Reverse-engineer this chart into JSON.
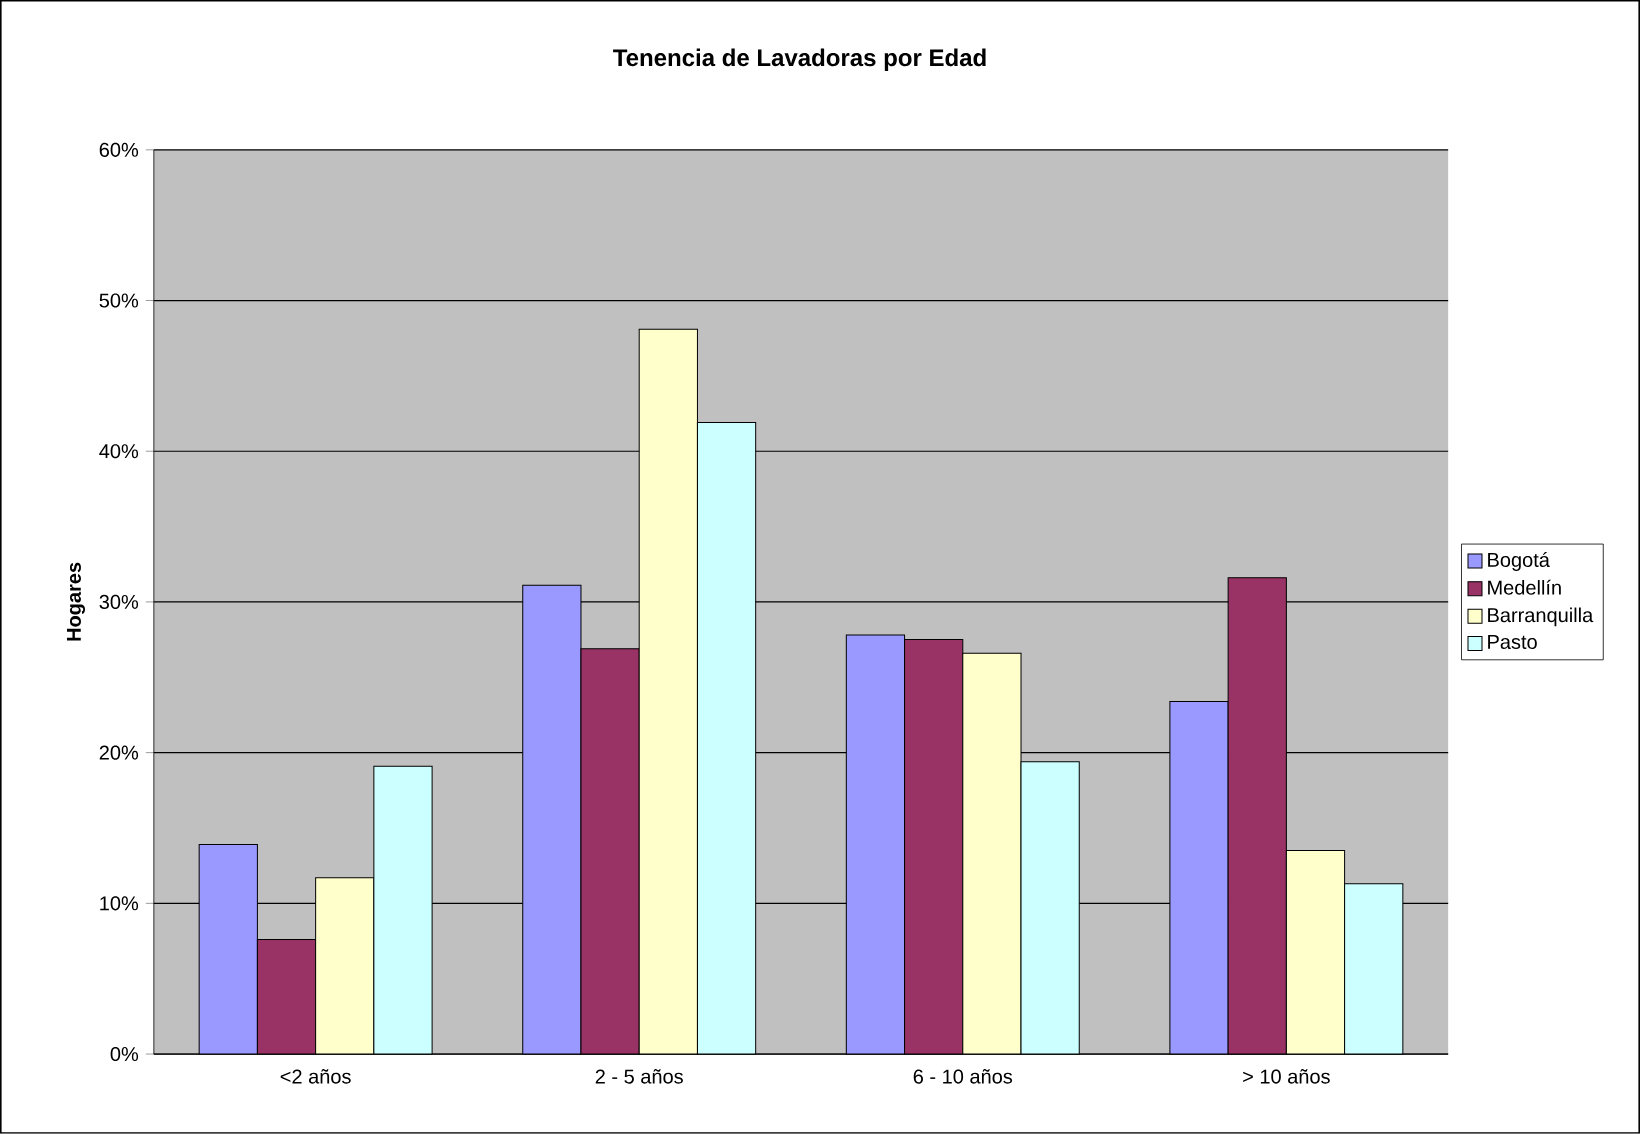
{
  "chart_data": {
    "type": "bar",
    "title": "Tenencia de Lavadoras por Edad",
    "ylabel": "Hogares",
    "categories": [
      "<2 años",
      "2 - 5 años",
      "6 - 10 años",
      "> 10 años"
    ],
    "series": [
      {
        "name": "Bogotá",
        "color": "#9999ff",
        "values": [
          13.9,
          31.1,
          27.8,
          23.4
        ]
      },
      {
        "name": "Medellín",
        "color": "#993366",
        "values": [
          7.6,
          26.9,
          27.5,
          31.6
        ]
      },
      {
        "name": "Barranquilla",
        "color": "#ffffcc",
        "values": [
          11.7,
          48.1,
          26.6,
          13.5
        ]
      },
      {
        "name": "Pasto",
        "color": "#ccffff",
        "values": [
          19.1,
          41.9,
          19.4,
          11.3
        ]
      }
    ],
    "ylim": [
      0,
      60
    ],
    "yticks": [
      {
        "value": 0,
        "label": "0%"
      },
      {
        "value": 10,
        "label": "10%"
      },
      {
        "value": 20,
        "label": "20%"
      },
      {
        "value": 30,
        "label": "30%"
      },
      {
        "value": 40,
        "label": "40%"
      },
      {
        "value": 50,
        "label": "50%"
      },
      {
        "value": 60,
        "label": "60%"
      }
    ],
    "grid": "y",
    "legend": "right"
  }
}
